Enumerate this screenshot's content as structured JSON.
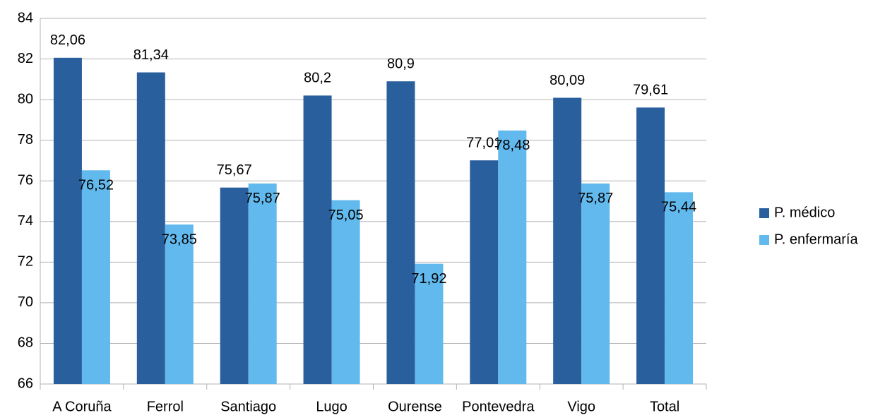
{
  "chart_data": {
    "type": "bar",
    "categories": [
      "A Coruña",
      "Ferrol",
      "Santiago",
      "Lugo",
      "Ourense",
      "Pontevedra",
      "Vigo",
      "Total"
    ],
    "series": [
      {
        "name": "P. médico",
        "color": "#2a5f9e",
        "values": [
          82.06,
          81.34,
          75.67,
          80.2,
          80.9,
          77.01,
          80.09,
          79.61
        ],
        "value_labels": [
          "82,06",
          "81,34",
          "75,67",
          "80,2",
          "80,9",
          "77,01",
          "80,09",
          "79,61"
        ]
      },
      {
        "name": "P. enfermaría",
        "color": "#62b9ed",
        "values": [
          76.52,
          73.85,
          75.87,
          75.05,
          71.92,
          78.48,
          75.87,
          75.44
        ],
        "value_labels": [
          "76,52",
          "73,85",
          "75,87",
          "75,05",
          "71,92",
          "78,48",
          "75,87",
          "75,44"
        ]
      }
    ],
    "ylim": [
      66,
      84
    ],
    "yticks": [
      66,
      68,
      70,
      72,
      74,
      76,
      78,
      80,
      82,
      84
    ],
    "grid": true,
    "legend": "right"
  }
}
